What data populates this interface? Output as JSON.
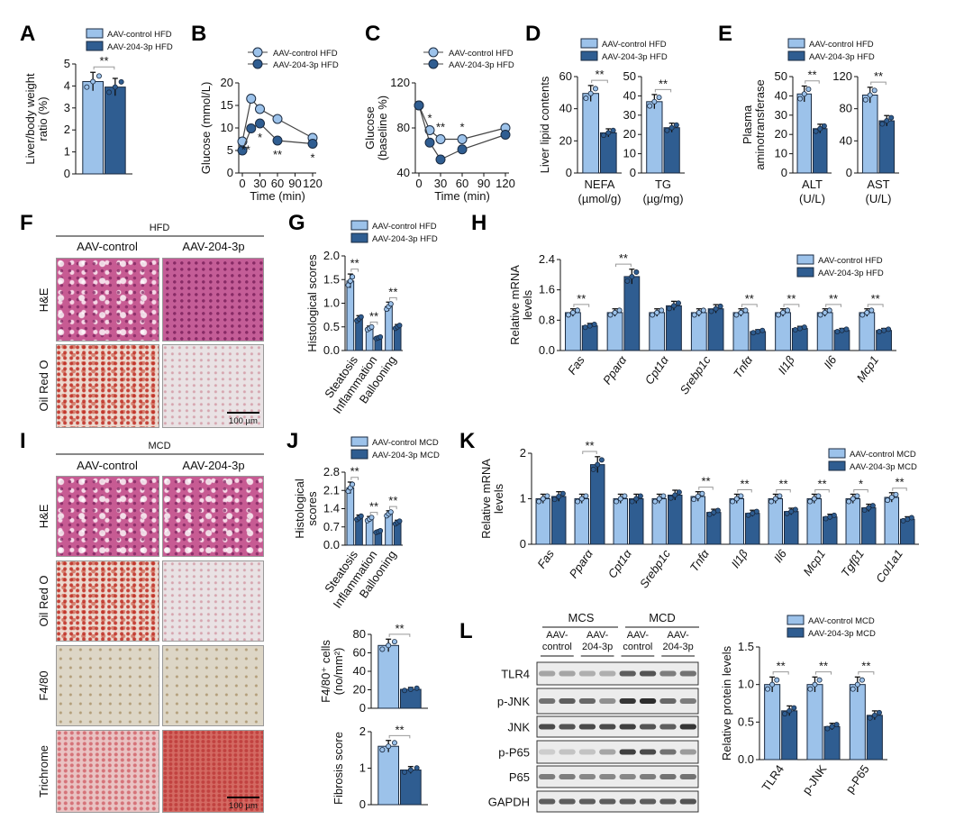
{
  "panel_letters": [
    "A",
    "B",
    "C",
    "D",
    "E",
    "F",
    "G",
    "H",
    "I",
    "J",
    "K",
    "L"
  ],
  "colors": {
    "control": "#9cc2ea",
    "treated": "#2f5d91",
    "edge": "#1a2a40"
  },
  "histology": {
    "F": {
      "diet": "HFD",
      "columns": [
        "AAV-control",
        "AAV-204-3p"
      ],
      "rows": [
        "H&E",
        "Oil Red O"
      ],
      "scale_bar": "100 µm"
    },
    "I": {
      "diet": "MCD",
      "columns": [
        "AAV-control",
        "AAV-204-3p"
      ],
      "rows": [
        "H&E",
        "Oil Red O",
        "F4/80",
        "Trichrome"
      ],
      "scale_bar": "100 µm"
    }
  },
  "blot": {
    "groups": [
      "MCS",
      "MCD"
    ],
    "lanes": [
      "AAV-\ncontrol",
      "AAV-\n204-3p",
      "AAV-\ncontrol",
      "AAV-\n204-3p"
    ],
    "rows": [
      "TLR4",
      "p-JNK",
      "JNK",
      "p-P65",
      "P65",
      "GAPDH"
    ]
  },
  "chart_data": [
    {
      "panel": "A",
      "type": "bar",
      "categories": [
        ""
      ],
      "ylabel": [
        "Liver/body weight",
        "ratio (%)"
      ],
      "ylim": [
        0,
        5
      ],
      "yticks": [
        0,
        1,
        2,
        3,
        4,
        5
      ],
      "series": [
        {
          "name": "AAV-control HFD",
          "values": [
            4.2
          ]
        },
        {
          "name": "AAV-204-3p HFD",
          "values": [
            3.95
          ]
        }
      ],
      "significance": [
        "**"
      ],
      "legend": "top"
    },
    {
      "panel": "B",
      "type": "line",
      "x": [
        0,
        15,
        30,
        60,
        120
      ],
      "xticks": [
        0,
        30,
        60,
        90,
        120
      ],
      "xlabel": "Time (min)",
      "ylabel": [
        "Glucose (mmol/L)"
      ],
      "ylim": [
        0,
        20
      ],
      "yticks": [
        0,
        5,
        10,
        15,
        20
      ],
      "series": [
        {
          "name": "AAV-control HFD",
          "values": [
            7,
            16.5,
            14.2,
            12,
            7.8
          ]
        },
        {
          "name": "AAV-204-3p HFD",
          "values": [
            5,
            9.9,
            11,
            7.2,
            6.5
          ]
        }
      ],
      "significance": [
        "",
        "**",
        "*",
        "**",
        "*"
      ],
      "legend": "top"
    },
    {
      "panel": "C",
      "type": "line",
      "x": [
        0,
        15,
        30,
        60,
        120
      ],
      "xticks": [
        0,
        30,
        60,
        90,
        120
      ],
      "xlabel": "Time (min)",
      "ylabel": [
        "Glucose",
        "(baseline %)"
      ],
      "ylim": [
        40,
        120
      ],
      "yticks": [
        40,
        80,
        120
      ],
      "series": [
        {
          "name": "AAV-control HFD",
          "values": [
            100,
            78,
            70,
            70,
            80
          ]
        },
        {
          "name": "AAV-204-3p HFD",
          "values": [
            100,
            67,
            52,
            61,
            74
          ]
        }
      ],
      "significance": [
        "",
        "*",
        "**",
        "*",
        ""
      ],
      "legend": "top"
    },
    {
      "panel": "D",
      "type": "bar",
      "categories": [
        "NEFA\n(µmol/g)"
      ],
      "ylabel": [
        "Liver lipid contents"
      ],
      "ylim": [
        0,
        60
      ],
      "yticks": [
        0,
        20,
        40,
        60
      ],
      "series": [
        {
          "name": "AAV-control HFD",
          "values": [
            49.5
          ]
        },
        {
          "name": "AAV-204-3p HFD",
          "values": [
            25
          ]
        }
      ],
      "significance": [
        "**"
      ],
      "legend": "top"
    },
    {
      "panel": "D",
      "type": "bar",
      "categories": [
        "TG\n(µg/mg)"
      ],
      "ylabel": [],
      "ylim": [
        0,
        50
      ],
      "yticks": [
        0,
        10,
        20,
        30,
        40,
        50
      ],
      "series": [
        {
          "name": "AAV-control HFD",
          "values": [
            37
          ]
        },
        {
          "name": "AAV-204-3p HFD",
          "values": [
            23.5
          ]
        }
      ],
      "significance": [
        "**"
      ]
    },
    {
      "panel": "E",
      "type": "bar",
      "categories": [
        "ALT\n(U/L)"
      ],
      "ylabel": [
        "Plasma",
        "aminotransferase"
      ],
      "ylim": [
        0,
        50
      ],
      "yticks": [
        0,
        10,
        20,
        30,
        40,
        50
      ],
      "series": [
        {
          "name": "AAV-control HFD",
          "values": [
            41
          ]
        },
        {
          "name": "AAV-204-3p HFD",
          "values": [
            23
          ]
        }
      ],
      "significance": [
        "**"
      ],
      "legend": "top"
    },
    {
      "panel": "E",
      "type": "bar",
      "categories": [
        "AST\n(U/L)"
      ],
      "ylabel": [],
      "ylim": [
        0,
        120
      ],
      "yticks": [
        0,
        40,
        80,
        120
      ],
      "series": [
        {
          "name": "AAV-control HFD",
          "values": [
            97
          ]
        },
        {
          "name": "AAV-204-3p HFD",
          "values": [
            65
          ]
        }
      ],
      "significance": [
        "**"
      ]
    },
    {
      "panel": "G",
      "type": "bar",
      "categories": [
        "Steatosis",
        "Inflammation",
        "Ballooning"
      ],
      "ylabel": [
        "Histological scores"
      ],
      "ylim": [
        0,
        2
      ],
      "yticks": [
        "0.0",
        "0.5",
        "1.0",
        "1.5",
        "2.0"
      ],
      "series": [
        {
          "name": "AAV-control HFD",
          "values": [
            1.47,
            0.47,
            0.93
          ]
        },
        {
          "name": "AAV-204-3p HFD",
          "values": [
            0.67,
            0.27,
            0.5
          ]
        }
      ],
      "significance": [
        "**",
        "**",
        "**"
      ],
      "legend": "top"
    },
    {
      "panel": "H",
      "type": "bar",
      "categories": [
        "Fas",
        "Pparα",
        "Cpt1α",
        "Srebp1c",
        "Tnfα",
        "Il1β",
        "Il6",
        "Mcp1"
      ],
      "italic_categories": true,
      "ylabel": [
        "Relative mRNA",
        "levels"
      ],
      "ylim": [
        0,
        2.4
      ],
      "yticks": [
        "0.0",
        "0.8",
        "1.6",
        "2.4"
      ],
      "series": [
        {
          "name": "AAV-control HFD",
          "values": [
            1,
            1,
            1,
            1,
            1,
            1,
            1,
            1
          ]
        },
        {
          "name": "AAV-204-3p HFD",
          "values": [
            0.65,
            1.95,
            1.18,
            1.1,
            0.5,
            0.58,
            0.53,
            0.53
          ]
        }
      ],
      "significance": [
        "**",
        "**",
        "",
        "",
        "**",
        "**",
        "**",
        "**"
      ],
      "legend": "top-right"
    },
    {
      "panel": "J",
      "type": "bar",
      "categories": [
        "Steatosis",
        "Inflammation",
        "Ballooning"
      ],
      "ylabel": [
        "Histological",
        "scores"
      ],
      "ylim": [
        0,
        2.8
      ],
      "yticks": [
        "0.0",
        "0.7",
        "1.4",
        "2.1",
        "2.8"
      ],
      "series": [
        {
          "name": "AAV-control MCD",
          "values": [
            2.2,
            1.0,
            1.2
          ]
        },
        {
          "name": "AAV-204-3p MCD",
          "values": [
            1.05,
            0.52,
            0.87
          ]
        }
      ],
      "significance": [
        "**",
        "**",
        "**"
      ],
      "legend": "top"
    },
    {
      "panel": "K",
      "type": "bar",
      "categories": [
        "Fas",
        "Pparα",
        "Cpt1α",
        "Srebp1c",
        "Tnfα",
        "Il1β",
        "Il6",
        "Mcp1",
        "Tgfβ1",
        "Col1a1"
      ],
      "italic_categories": true,
      "ylabel": [
        "Relative mRNA",
        "levels"
      ],
      "ylim": [
        0,
        2
      ],
      "yticks": [
        0,
        1,
        2
      ],
      "series": [
        {
          "name": "AAV-control MCD",
          "values": [
            1,
            1,
            1,
            1,
            1.05,
            1,
            1,
            1,
            1,
            1.03
          ]
        },
        {
          "name": "AAV-204-3p MCD",
          "values": [
            1.05,
            1.75,
            1.0,
            1.08,
            0.7,
            0.68,
            0.72,
            0.6,
            0.8,
            0.55
          ]
        }
      ],
      "significance": [
        "",
        "**",
        "",
        "",
        "**",
        "**",
        "**",
        "**",
        "*",
        "**"
      ],
      "legend": "top-right"
    },
    {
      "panel": "I",
      "type": "bar",
      "categories": [
        ""
      ],
      "ylabel": [
        "F4/80⁺ cells",
        "(no/mm²)"
      ],
      "ylim": [
        0,
        80
      ],
      "yticks": [
        0,
        20,
        40,
        60,
        80
      ],
      "series": [
        {
          "name": "AAV-control MCD",
          "values": [
            68
          ]
        },
        {
          "name": "AAV-204-3p MCD",
          "values": [
            20.5
          ]
        }
      ],
      "significance": [
        "**"
      ]
    },
    {
      "panel": "I",
      "type": "bar",
      "categories": [
        ""
      ],
      "ylabel": [
        "Fibrosis score"
      ],
      "ylim": [
        0,
        2
      ],
      "yticks": [
        0,
        1,
        2
      ],
      "series": [
        {
          "name": "AAV-control MCD",
          "values": [
            1.6
          ]
        },
        {
          "name": "AAV-204-3p MCD",
          "values": [
            0.95
          ]
        }
      ],
      "significance": [
        "**"
      ]
    },
    {
      "panel": "L",
      "type": "bar",
      "categories": [
        "TLR4",
        "p-JNK",
        "p-P65"
      ],
      "ylabel": [
        "Relative protein levels"
      ],
      "ylim": [
        0,
        1.5
      ],
      "yticks": [
        "0.0",
        "0.5",
        "1.0",
        "1.5"
      ],
      "series": [
        {
          "name": "AAV-control MCD",
          "values": [
            1,
            1,
            1
          ]
        },
        {
          "name": "AAV-204-3p MCD",
          "values": [
            0.65,
            0.44,
            0.59
          ]
        }
      ],
      "significance": [
        "**",
        "**",
        "**"
      ],
      "legend": "top"
    }
  ]
}
